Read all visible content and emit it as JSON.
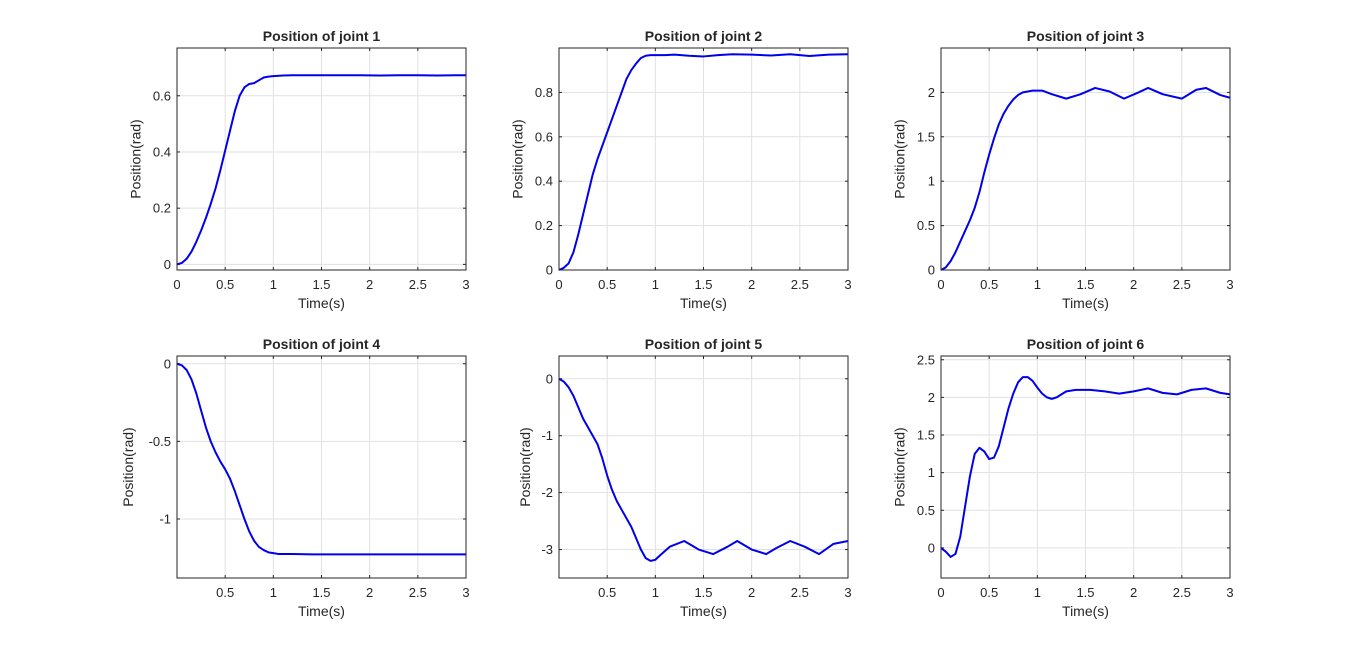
{
  "figure": {
    "background": "#ffffff",
    "line_color": "#0000ee",
    "grid_color": "#e1e1e1"
  },
  "chart_data": [
    {
      "type": "line",
      "title": "Position of joint 1",
      "xlabel": "Time(s)",
      "ylabel": "Position(rad)",
      "xlim": [
        0,
        3
      ],
      "ylim": [
        -0.02,
        0.77
      ],
      "xticks": [
        0,
        0.5,
        1,
        1.5,
        2,
        2.5,
        3
      ],
      "xticklabels": [
        "0",
        "0.5",
        "1",
        "1.5",
        "2",
        "2.5",
        "3"
      ],
      "yticks": [
        0,
        0.2,
        0.4,
        0.6
      ],
      "yticklabels": [
        "0",
        "0.2",
        "0.4",
        "0.6"
      ],
      "grid": true,
      "series": [
        {
          "color": "#0000ee",
          "x": [
            0,
            0.05,
            0.1,
            0.15,
            0.2,
            0.25,
            0.3,
            0.35,
            0.4,
            0.45,
            0.5,
            0.55,
            0.6,
            0.65,
            0.7,
            0.75,
            0.8,
            0.85,
            0.9,
            0.95,
            1.0,
            1.1,
            1.2,
            1.3,
            1.5,
            1.7,
            1.9,
            2.1,
            2.3,
            2.5,
            2.7,
            2.9,
            3.0
          ],
          "y": [
            0,
            0.005,
            0.02,
            0.045,
            0.08,
            0.12,
            0.165,
            0.215,
            0.27,
            0.335,
            0.405,
            0.475,
            0.545,
            0.6,
            0.63,
            0.642,
            0.645,
            0.655,
            0.665,
            0.668,
            0.67,
            0.672,
            0.673,
            0.673,
            0.673,
            0.673,
            0.673,
            0.672,
            0.673,
            0.673,
            0.672,
            0.673,
            0.673
          ]
        }
      ]
    },
    {
      "type": "line",
      "title": "Position of joint 2",
      "xlabel": "Time(s)",
      "ylabel": "Position(rad)",
      "xlim": [
        0,
        3
      ],
      "ylim": [
        0,
        1.0
      ],
      "xticks": [
        0,
        0.5,
        1,
        1.5,
        2,
        2.5,
        3
      ],
      "xticklabels": [
        "0",
        "0.5",
        "1",
        "1.5",
        "2",
        "2.5",
        "3"
      ],
      "yticks": [
        0,
        0.2,
        0.4,
        0.6,
        0.8
      ],
      "yticklabels": [
        "0",
        "0.2",
        "0.4",
        "0.6",
        "0.8"
      ],
      "grid": true,
      "series": [
        {
          "color": "#0000ee",
          "x": [
            0,
            0.05,
            0.1,
            0.15,
            0.2,
            0.25,
            0.3,
            0.35,
            0.4,
            0.45,
            0.5,
            0.55,
            0.6,
            0.65,
            0.7,
            0.75,
            0.8,
            0.85,
            0.9,
            0.95,
            1.0,
            1.1,
            1.2,
            1.35,
            1.5,
            1.65,
            1.8,
            2.0,
            2.2,
            2.4,
            2.6,
            2.8,
            3.0
          ],
          "y": [
            0,
            0.01,
            0.03,
            0.08,
            0.16,
            0.25,
            0.34,
            0.43,
            0.5,
            0.56,
            0.62,
            0.68,
            0.74,
            0.8,
            0.86,
            0.9,
            0.93,
            0.955,
            0.965,
            0.968,
            0.968,
            0.968,
            0.97,
            0.965,
            0.962,
            0.968,
            0.972,
            0.97,
            0.966,
            0.972,
            0.964,
            0.97,
            0.972
          ]
        }
      ]
    },
    {
      "type": "line",
      "title": "Position of joint 3",
      "xlabel": "Time(s)",
      "ylabel": "Position(rad)",
      "xlim": [
        0,
        3
      ],
      "ylim": [
        0,
        2.5
      ],
      "xticks": [
        0,
        0.5,
        1,
        1.5,
        2,
        2.5,
        3
      ],
      "xticklabels": [
        "0",
        "0.5",
        "1",
        "1.5",
        "2",
        "2.5",
        "3"
      ],
      "yticks": [
        0,
        0.5,
        1,
        1.5,
        2
      ],
      "yticklabels": [
        "0",
        "0.5",
        "1",
        "1.5",
        "2"
      ],
      "grid": true,
      "series": [
        {
          "color": "#0000ee",
          "x": [
            0,
            0.05,
            0.1,
            0.15,
            0.2,
            0.25,
            0.3,
            0.35,
            0.4,
            0.45,
            0.5,
            0.55,
            0.6,
            0.65,
            0.7,
            0.75,
            0.8,
            0.85,
            0.9,
            0.95,
            1.0,
            1.05,
            1.15,
            1.3,
            1.45,
            1.6,
            1.75,
            1.9,
            2.05,
            2.15,
            2.3,
            2.5,
            2.65,
            2.75,
            2.9,
            3.0
          ],
          "y": [
            0,
            0.03,
            0.1,
            0.2,
            0.32,
            0.44,
            0.56,
            0.7,
            0.88,
            1.1,
            1.3,
            1.48,
            1.64,
            1.76,
            1.85,
            1.92,
            1.97,
            2.0,
            2.01,
            2.02,
            2.02,
            2.02,
            1.98,
            1.93,
            1.98,
            2.05,
            2.01,
            1.93,
            2.0,
            2.05,
            1.98,
            1.93,
            2.03,
            2.05,
            1.97,
            1.94
          ]
        }
      ]
    },
    {
      "type": "line",
      "title": "Position of joint 4",
      "xlabel": "Time(s)",
      "ylabel": "Position(rad)",
      "xlim": [
        0,
        3
      ],
      "ylim": [
        -1.38,
        0.05
      ],
      "xticks": [
        0.5,
        1,
        1.5,
        2,
        2.5,
        3
      ],
      "xticklabels": [
        "0.5",
        "1",
        "1.5",
        "2",
        "2.5",
        "3"
      ],
      "yticks": [
        -1,
        -0.5,
        0
      ],
      "yticklabels": [
        "-1",
        "-0.5",
        "0"
      ],
      "grid": true,
      "series": [
        {
          "color": "#0000ee",
          "x": [
            0,
            0.05,
            0.1,
            0.15,
            0.2,
            0.25,
            0.3,
            0.35,
            0.4,
            0.45,
            0.5,
            0.55,
            0.6,
            0.65,
            0.7,
            0.75,
            0.8,
            0.85,
            0.9,
            0.95,
            1.0,
            1.05,
            1.1,
            1.2,
            1.4,
            1.6,
            1.8,
            2.0,
            2.2,
            2.4,
            2.6,
            2.8,
            3.0
          ],
          "y": [
            0,
            -0.01,
            -0.04,
            -0.1,
            -0.19,
            -0.3,
            -0.41,
            -0.5,
            -0.57,
            -0.63,
            -0.68,
            -0.74,
            -0.82,
            -0.91,
            -1.0,
            -1.08,
            -1.14,
            -1.18,
            -1.2,
            -1.215,
            -1.22,
            -1.225,
            -1.225,
            -1.225,
            -1.228,
            -1.228,
            -1.228,
            -1.228,
            -1.228,
            -1.228,
            -1.228,
            -1.228,
            -1.228
          ]
        }
      ]
    },
    {
      "type": "line",
      "title": "Position of joint 5",
      "xlabel": "Time(s)",
      "ylabel": "Position(rad)",
      "xlim": [
        0,
        3
      ],
      "ylim": [
        -3.5,
        0.4
      ],
      "xticks": [
        0.5,
        1,
        1.5,
        2,
        2.5,
        3
      ],
      "xticklabels": [
        "0.5",
        "1",
        "1.5",
        "2",
        "2.5",
        "3"
      ],
      "yticks": [
        -3,
        -2,
        -1,
        0
      ],
      "yticklabels": [
        "-3",
        "-2",
        "-1",
        "0"
      ],
      "grid": true,
      "series": [
        {
          "color": "#0000ee",
          "x": [
            0,
            0.05,
            0.1,
            0.15,
            0.2,
            0.25,
            0.3,
            0.35,
            0.4,
            0.45,
            0.5,
            0.55,
            0.6,
            0.65,
            0.7,
            0.75,
            0.8,
            0.85,
            0.9,
            0.95,
            1.0,
            1.05,
            1.15,
            1.3,
            1.45,
            1.6,
            1.75,
            1.85,
            2.0,
            2.15,
            2.25,
            2.4,
            2.55,
            2.7,
            2.85,
            3.0
          ],
          "y": [
            0,
            -0.05,
            -0.15,
            -0.3,
            -0.5,
            -0.7,
            -0.85,
            -1.0,
            -1.15,
            -1.4,
            -1.7,
            -1.95,
            -2.15,
            -2.3,
            -2.45,
            -2.6,
            -2.8,
            -3.0,
            -3.15,
            -3.2,
            -3.18,
            -3.1,
            -2.95,
            -2.85,
            -3.0,
            -3.08,
            -2.95,
            -2.85,
            -3.0,
            -3.08,
            -2.98,
            -2.85,
            -2.95,
            -3.08,
            -2.9,
            -2.85
          ]
        }
      ]
    },
    {
      "type": "line",
      "title": "Position of joint 6",
      "xlabel": "Time(s)",
      "ylabel": "Position(rad)",
      "xlim": [
        0,
        3
      ],
      "ylim": [
        -0.4,
        2.55
      ],
      "xticks": [
        0,
        0.5,
        1,
        1.5,
        2,
        2.5,
        3
      ],
      "xticklabels": [
        "0",
        "0.5",
        "1",
        "1.5",
        "2",
        "2.5",
        "3"
      ],
      "yticks": [
        0,
        0.5,
        1,
        1.5,
        2,
        2.5
      ],
      "yticklabels": [
        "0",
        "0.5",
        "1",
        "1.5",
        "2",
        "2.5"
      ],
      "grid": true,
      "series": [
        {
          "color": "#0000ee",
          "x": [
            0,
            0.05,
            0.1,
            0.15,
            0.2,
            0.25,
            0.3,
            0.35,
            0.4,
            0.45,
            0.5,
            0.55,
            0.6,
            0.65,
            0.7,
            0.75,
            0.8,
            0.85,
            0.9,
            0.95,
            1.0,
            1.05,
            1.1,
            1.15,
            1.2,
            1.3,
            1.4,
            1.55,
            1.7,
            1.85,
            2.0,
            2.15,
            2.3,
            2.45,
            2.6,
            2.75,
            2.9,
            3.0
          ],
          "y": [
            0,
            -0.05,
            -0.12,
            -0.08,
            0.15,
            0.55,
            0.95,
            1.25,
            1.33,
            1.28,
            1.18,
            1.2,
            1.35,
            1.6,
            1.85,
            2.05,
            2.2,
            2.27,
            2.27,
            2.22,
            2.13,
            2.05,
            2.0,
            1.98,
            2.0,
            2.08,
            2.1,
            2.1,
            2.08,
            2.05,
            2.08,
            2.12,
            2.06,
            2.04,
            2.1,
            2.12,
            2.06,
            2.04
          ]
        }
      ]
    }
  ]
}
